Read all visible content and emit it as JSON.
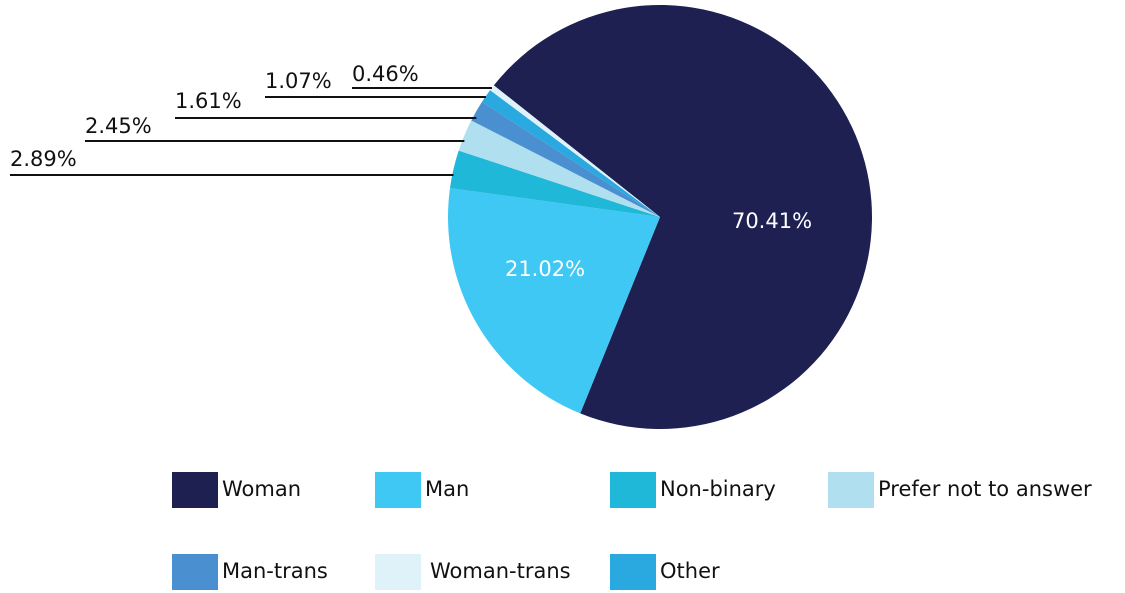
{
  "chart_data": {
    "type": "pie",
    "categories": [
      "Woman",
      "Man",
      "Non-binary",
      "Prefer not to answer",
      "Man-trans",
      "Woman-trans",
      "Other"
    ],
    "values": [
      70.41,
      21.02,
      2.89,
      2.45,
      1.61,
      0.46,
      1.07
    ],
    "value_labels": [
      "70.41%",
      "21.02%",
      "2.89%",
      "2.45%",
      "1.61%",
      "0.46%",
      "1.07%"
    ],
    "colors": [
      "#1e2052",
      "#40c8f4",
      "#20b8d8",
      "#b0e0f0",
      "#4a90d0",
      "#dff2fa",
      "#2aa8e0"
    ],
    "legend": "bottom"
  }
}
